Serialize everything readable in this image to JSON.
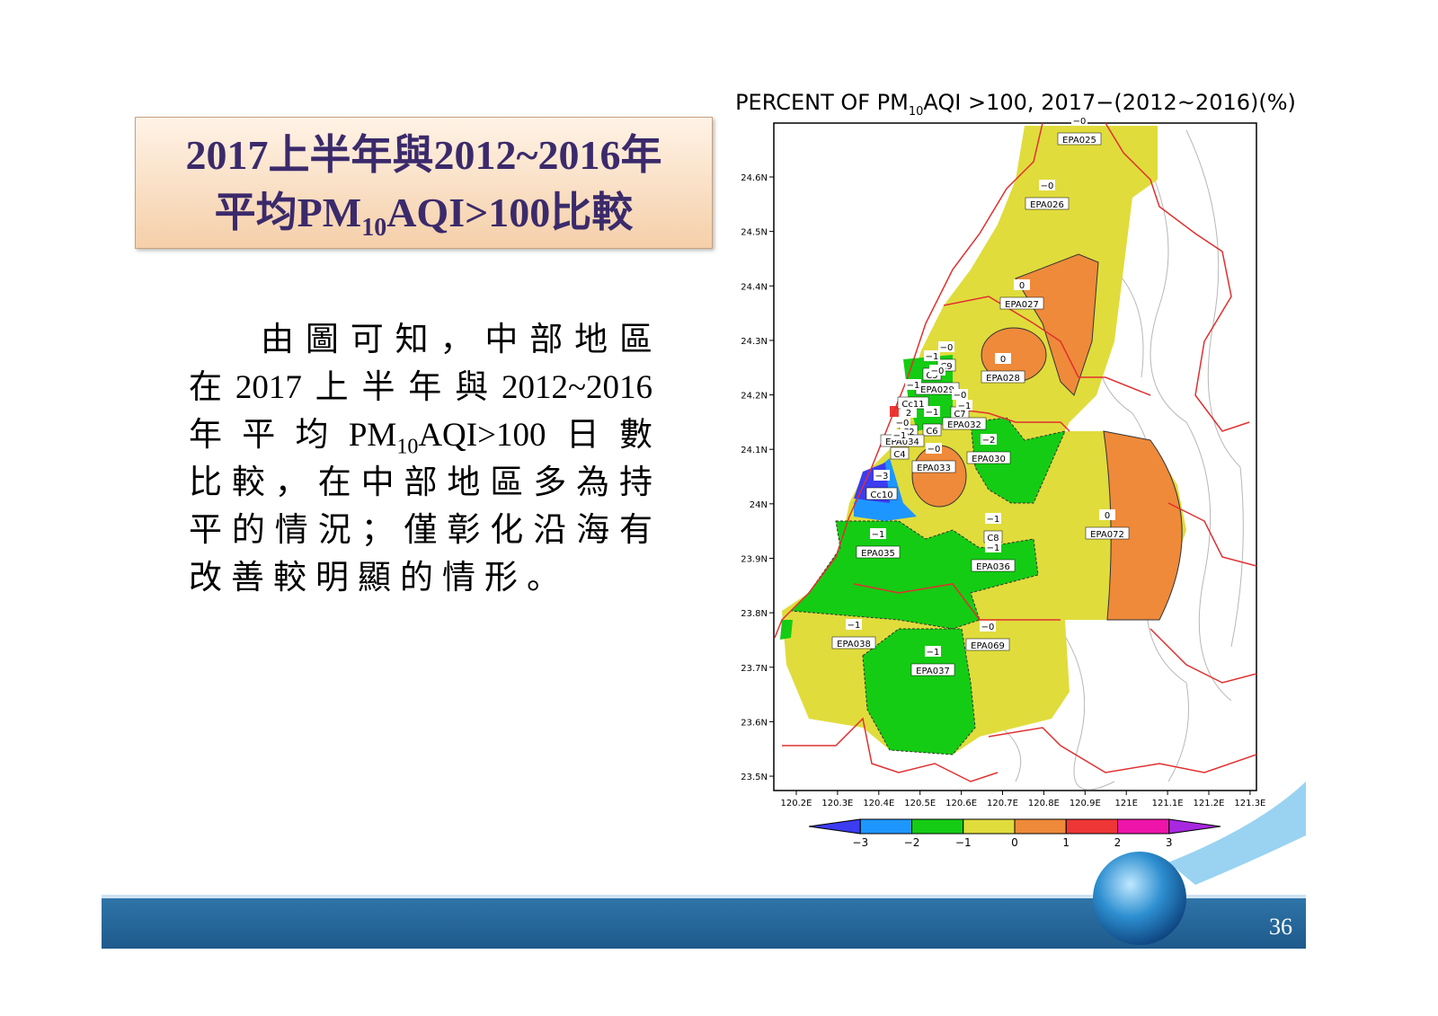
{
  "slide": {
    "title": {
      "line1": "2017上半年與2012~2016年",
      "line2": [
        "平均PM",
        "10",
        "AQI>100比較"
      ]
    },
    "body": [
      [
        "由圖可知，中部地區"
      ],
      [
        "在2017上半年與2012~2016"
      ],
      [
        "年平均PM",
        "10",
        "AQI>100日數"
      ],
      [
        "比較，在中部地區多為持"
      ],
      [
        "平的情況；僅彰化沿海有"
      ],
      [
        "改善較明顯的情形。"
      ]
    ],
    "page_number": "36"
  },
  "map": {
    "title": [
      "PERCENT OF PM",
      "10",
      "AQI >100, 2017−(2012~2016)(%)"
    ],
    "lat_ticks": [
      "24.6N",
      "24.5N",
      "24.4N",
      "24.3N",
      "24.2N",
      "24.1N",
      "24N",
      "23.9N",
      "23.8N",
      "23.7N",
      "23.6N",
      "23.5N"
    ],
    "lon_ticks": [
      "120.2E",
      "120.3E",
      "120.4E",
      "120.5E",
      "120.6E",
      "120.7E",
      "120.8E",
      "120.9E",
      "121E",
      "121.1E",
      "121.2E",
      "121.3E"
    ],
    "colorbar": {
      "labels": [
        "−3",
        "−2",
        "−1",
        "0",
        "1",
        "2",
        "3"
      ],
      "colors": [
        "#3c3cf0",
        "#1e96ff",
        "#14cc14",
        "#e0dc3c",
        "#ee8a3a",
        "#ee3636",
        "#ee14aa",
        "#a828e0"
      ]
    },
    "stations": [
      {
        "name": "EPA025",
        "value": "−0"
      },
      {
        "name": "EPA026",
        "value": "−0"
      },
      {
        "name": "EPA027",
        "value": "0"
      },
      {
        "name": "EPA028",
        "value": "0"
      },
      {
        "name": "C9",
        "value": "−0"
      },
      {
        "name": "C5",
        "value": "−1"
      },
      {
        "name": "EPA029",
        "value": "−0"
      },
      {
        "name": "Cc11",
        "value": "−1"
      },
      {
        "name": "C7",
        "value": "−0"
      },
      {
        "name": "EPA032",
        "value": "−1"
      },
      {
        "name": "C6",
        "value": "−1"
      },
      {
        "name": "C2",
        "value": "2"
      },
      {
        "name": "EPA034",
        "value": "−0"
      },
      {
        "name": "C4",
        "value": "−1"
      },
      {
        "name": "EPA033",
        "value": "−0"
      },
      {
        "name": "EPA030",
        "value": "−2"
      },
      {
        "name": "Cc10",
        "value": "−3"
      },
      {
        "name": "EPA072",
        "value": "0"
      },
      {
        "name": "C8",
        "value": "−1"
      },
      {
        "name": "EPA036",
        "value": "−1"
      },
      {
        "name": "EPA035",
        "value": "−1"
      },
      {
        "name": "EPA038",
        "value": "−1"
      },
      {
        "name": "EPA037",
        "value": "−1"
      },
      {
        "name": "EPA069",
        "value": "−0"
      }
    ]
  }
}
